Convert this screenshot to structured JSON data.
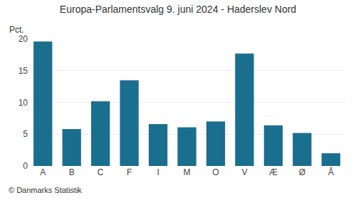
{
  "chart_data": {
    "type": "bar",
    "title": "Europa-Parlamentsvalg 9. juni 2024 - Haderslev Nord",
    "categories": [
      "A",
      "B",
      "C",
      "F",
      "I",
      "M",
      "O",
      "V",
      "Æ",
      "Ø",
      "Å"
    ],
    "values": [
      19.6,
      5.8,
      10.2,
      13.5,
      6.6,
      6.1,
      7.0,
      17.7,
      6.4,
      5.2,
      2.0
    ],
    "color": "#1a6e8e",
    "ylabel": "Pct.",
    "ylim": [
      0,
      20
    ],
    "yticks": [
      0,
      5,
      10,
      15,
      20
    ],
    "grid": true,
    "annotations": [
      "© Danmarks Statistik"
    ]
  }
}
